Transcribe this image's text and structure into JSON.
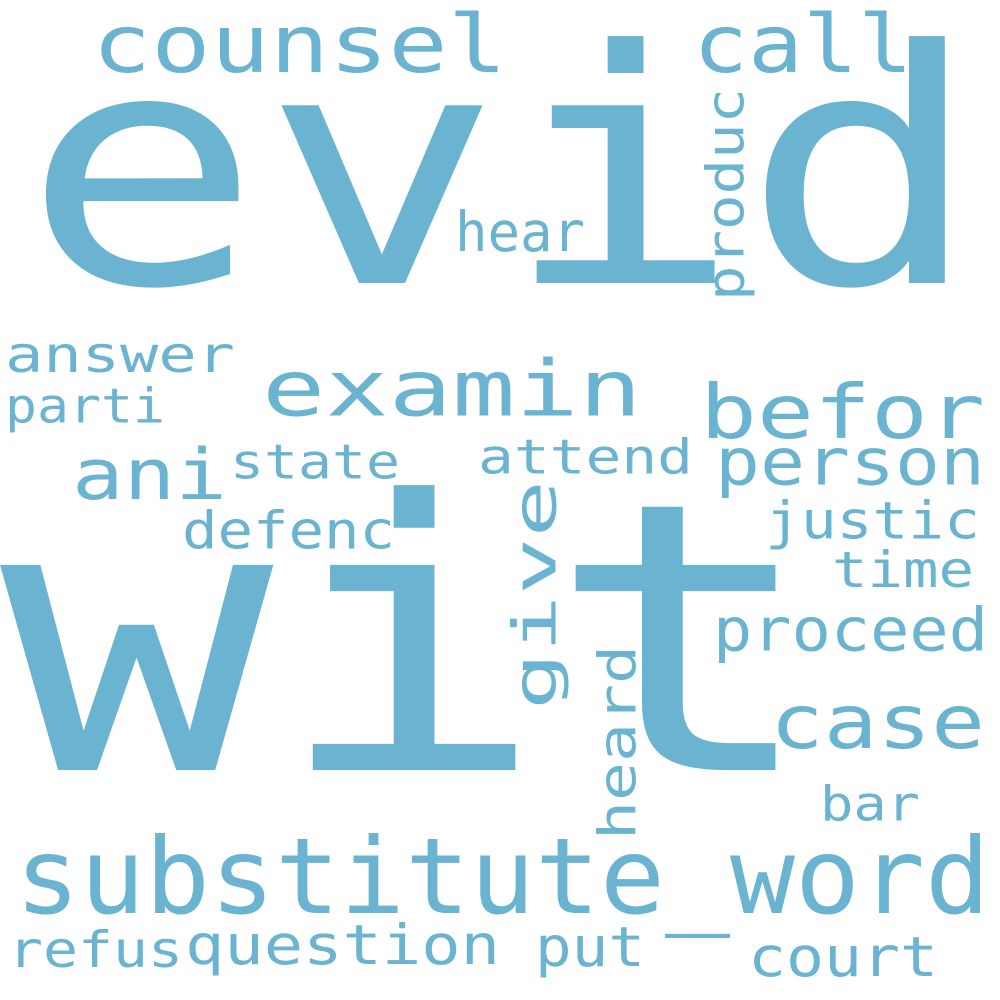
{
  "color": "#6ab3d1",
  "background": "#ffffff",
  "words": [
    {
      "key": "evid",
      "text": "evid"
    },
    {
      "key": "wit",
      "text": "wit"
    },
    {
      "key": "substitute_word",
      "text": "substitute_word"
    },
    {
      "key": "examin",
      "text": "examin"
    },
    {
      "key": "counsel",
      "text": "counsel"
    },
    {
      "key": "call",
      "text": "call"
    },
    {
      "key": "befor",
      "text": "befor"
    },
    {
      "key": "person",
      "text": "person"
    },
    {
      "key": "case",
      "text": "case"
    },
    {
      "key": "ani",
      "text": "ani"
    },
    {
      "key": "give",
      "text": "give"
    },
    {
      "key": "proceed",
      "text": "proceed"
    },
    {
      "key": "question",
      "text": "question"
    },
    {
      "key": "answer",
      "text": "answer"
    },
    {
      "key": "parti",
      "text": "parti"
    },
    {
      "key": "state",
      "text": "state"
    },
    {
      "key": "attend",
      "text": "attend"
    },
    {
      "key": "justic",
      "text": "justic"
    },
    {
      "key": "defenc",
      "text": "defenc"
    },
    {
      "key": "time",
      "text": "time"
    },
    {
      "key": "hear",
      "text": "hear"
    },
    {
      "key": "produc",
      "text": "produc"
    },
    {
      "key": "heard",
      "text": "heard"
    },
    {
      "key": "bar",
      "text": "bar"
    },
    {
      "key": "refus",
      "text": "refus"
    },
    {
      "key": "put",
      "text": "put"
    },
    {
      "key": "court",
      "text": "court"
    }
  ]
}
